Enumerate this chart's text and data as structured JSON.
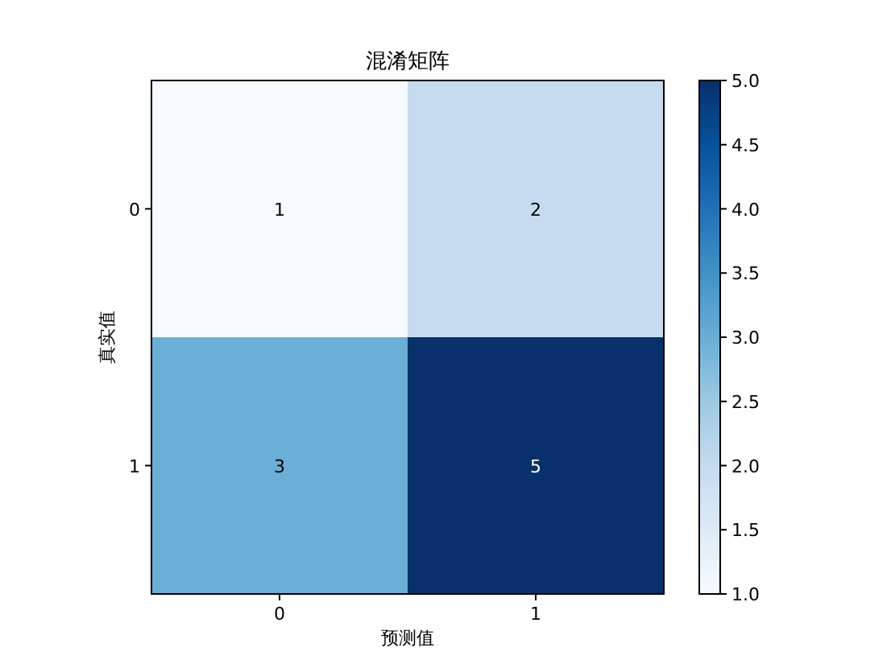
{
  "chart_data": {
    "type": "heatmap",
    "title": "混淆矩阵",
    "xlabel": "预测值",
    "ylabel": "真实值",
    "categories": [
      "0",
      "1"
    ],
    "y_categories": [
      "0",
      "1"
    ],
    "cells": [
      [
        1,
        2
      ],
      [
        3,
        5
      ]
    ],
    "data_labels": true,
    "clim": [
      1,
      5
    ],
    "cticks": [
      {
        "value": 1,
        "label": "1.0"
      },
      {
        "value": 1.5,
        "label": "1.5"
      },
      {
        "value": 2,
        "label": "2.0"
      },
      {
        "value": 2.5,
        "label": "2.5"
      },
      {
        "value": 3,
        "label": "3.0"
      },
      {
        "value": 3.5,
        "label": "3.5"
      },
      {
        "value": 4,
        "label": "4.0"
      },
      {
        "value": 4.5,
        "label": "4.5"
      },
      {
        "value": 5,
        "label": "5.0"
      }
    ]
  }
}
